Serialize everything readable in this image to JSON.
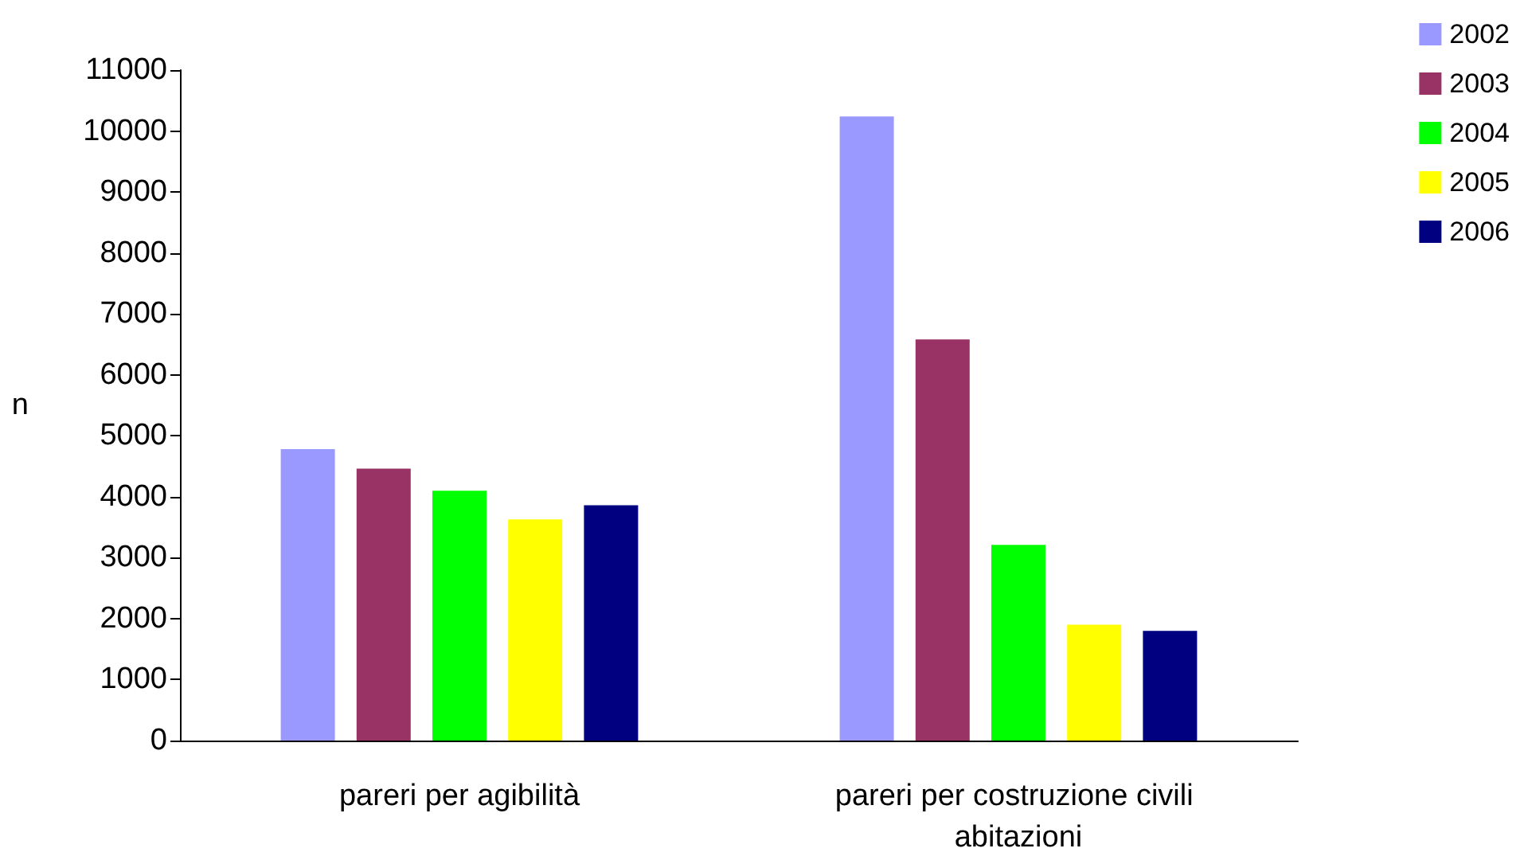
{
  "chart_data": {
    "type": "bar",
    "ylabel": "n",
    "categories": [
      "pareri per agibilità",
      "pareri per costruzione civili abitazioni"
    ],
    "series": [
      {
        "name": "2002",
        "color": "#9999ff",
        "values": [
          4780,
          10240
        ]
      },
      {
        "name": "2003",
        "color": "#993366",
        "values": [
          4460,
          6580
        ]
      },
      {
        "name": "2004",
        "color": "#00ff00",
        "values": [
          4100,
          3210
        ]
      },
      {
        "name": "2005",
        "color": "#ffff00",
        "values": [
          3630,
          1900
        ]
      },
      {
        "name": "2006",
        "color": "#000080",
        "values": [
          3860,
          1800
        ]
      }
    ],
    "ylim": [
      0,
      11000
    ],
    "yticks": [
      0,
      1000,
      2000,
      3000,
      4000,
      5000,
      6000,
      7000,
      8000,
      9000,
      10000,
      11000
    ],
    "grid": false,
    "legend": "top right"
  }
}
